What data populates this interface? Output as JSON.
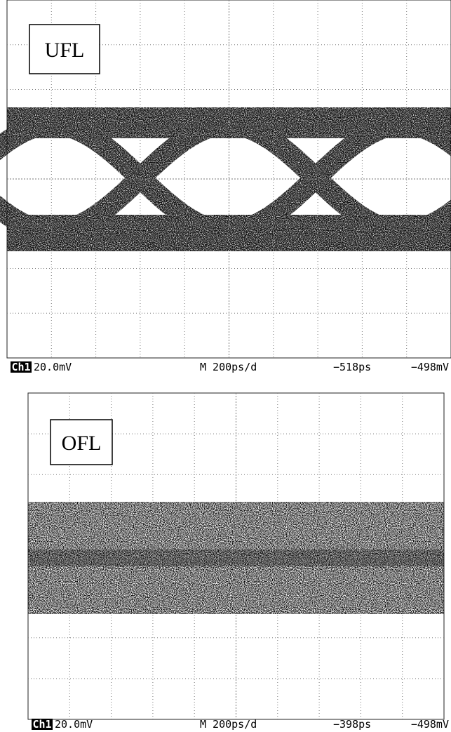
{
  "panels": [
    {
      "label": "UFL",
      "readout": {
        "channel": "Ch1",
        "scale": "20.0mV",
        "timebase": "M 200ps/d",
        "position": "−518ps",
        "trigger": "−498mV"
      }
    },
    {
      "label": "OFL",
      "readout": {
        "channel": "Ch1",
        "scale": "20.0mV",
        "timebase": "M 200ps/d",
        "position": "−398ps",
        "trigger": "−498mV"
      }
    }
  ]
}
